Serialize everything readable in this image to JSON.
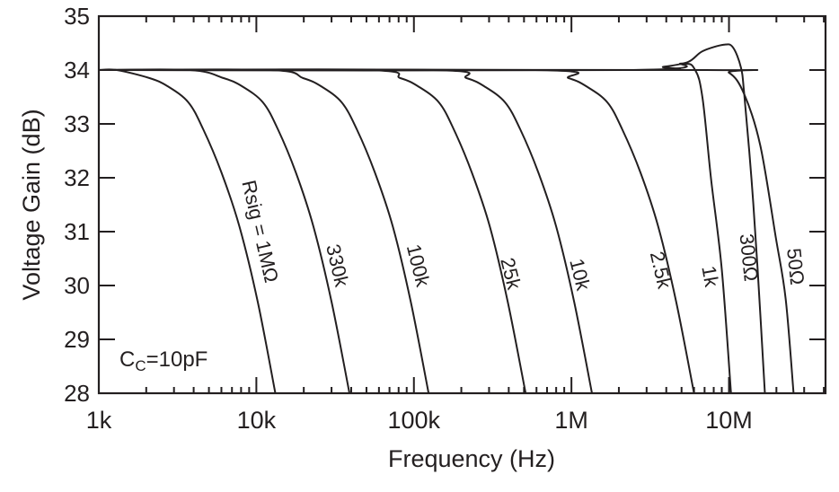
{
  "chart_data": {
    "type": "line",
    "title": "",
    "xlabel": "Frequency (Hz)",
    "ylabel": "Voltage Gain (dB)",
    "xscale": "log",
    "xlim": [
      1000,
      41000000
    ],
    "ylim": [
      28,
      35
    ],
    "x_ticks": [
      {
        "value": 1000,
        "label": "1k"
      },
      {
        "value": 10000,
        "label": "10k"
      },
      {
        "value": 100000,
        "label": "100k"
      },
      {
        "value": 1000000,
        "label": "1M"
      },
      {
        "value": 10000000,
        "label": "10M"
      }
    ],
    "y_ticks": [
      {
        "value": 35,
        "label": "35"
      },
      {
        "value": 34,
        "label": "34"
      },
      {
        "value": 33,
        "label": "33"
      },
      {
        "value": 32,
        "label": "32"
      },
      {
        "value": 31,
        "label": "31"
      },
      {
        "value": 30,
        "label": "30"
      },
      {
        "value": 29,
        "label": "29"
      },
      {
        "value": 28,
        "label": "28"
      }
    ],
    "grid": false,
    "annotation": {
      "main": "C",
      "sub": "C",
      "rest": "=10pF"
    },
    "line_color": "#231f20",
    "series": [
      {
        "name": "Rsig = 1MΩ",
        "points": [
          [
            1000,
            34
          ],
          [
            1300,
            34
          ],
          [
            2100,
            33.85
          ],
          [
            2730,
            33.7
          ],
          [
            3700,
            33.4
          ],
          [
            4600,
            32.9
          ],
          [
            6000,
            32.1
          ],
          [
            7800,
            31.1
          ],
          [
            10200,
            29.7
          ],
          [
            13200,
            28
          ]
        ]
      },
      {
        "name": "330k",
        "points": [
          [
            1000,
            34
          ],
          [
            3800,
            34
          ],
          [
            6200,
            33.85
          ],
          [
            8100,
            33.7
          ],
          [
            11000,
            33.4
          ],
          [
            13700,
            32.9
          ],
          [
            17800,
            32.1
          ],
          [
            23000,
            31.1
          ],
          [
            30000,
            29.7
          ],
          [
            39000,
            28
          ]
        ]
      },
      {
        "name": "100k",
        "points": [
          [
            1000,
            34
          ],
          [
            12200,
            34
          ],
          [
            19800,
            33.85
          ],
          [
            25700,
            33.7
          ],
          [
            34800,
            33.4
          ],
          [
            43400,
            32.9
          ],
          [
            56500,
            32.1
          ],
          [
            73400,
            31.1
          ],
          [
            95500,
            29.7
          ],
          [
            124000,
            28
          ]
        ]
      },
      {
        "name": "25k",
        "points": [
          [
            1000,
            34
          ],
          [
            50000,
            34
          ],
          [
            82000,
            33.85
          ],
          [
            106000,
            33.7
          ],
          [
            144000,
            33.4
          ],
          [
            179000,
            32.9
          ],
          [
            233000,
            32.1
          ],
          [
            303000,
            31.1
          ],
          [
            394000,
            29.7
          ],
          [
            512000,
            28
          ]
        ]
      },
      {
        "name": "10k",
        "points": [
          [
            1000,
            34
          ],
          [
            132000,
            34
          ],
          [
            216000,
            33.85
          ],
          [
            279000,
            33.7
          ],
          [
            379000,
            33.4
          ],
          [
            473000,
            32.9
          ],
          [
            616000,
            32.1
          ],
          [
            799000,
            31.1
          ],
          [
            1040000,
            29.7
          ],
          [
            1350000,
            28
          ]
        ]
      },
      {
        "name": "2.5k",
        "points": [
          [
            1000,
            34
          ],
          [
            588000,
            34
          ],
          [
            960000,
            33.85
          ],
          [
            1240000,
            33.7
          ],
          [
            1690000,
            33.4
          ],
          [
            2100000,
            32.9
          ],
          [
            2740000,
            32.1
          ],
          [
            3550000,
            31.1
          ],
          [
            4620000,
            29.7
          ],
          [
            6000000,
            28
          ]
        ]
      },
      {
        "name": "1k",
        "points": [
          [
            1000,
            34
          ],
          [
            2280000,
            34
          ],
          [
            5000000,
            34.12
          ],
          [
            6100000,
            34.0
          ],
          [
            6800000,
            33.47
          ],
          [
            7700000,
            31.97
          ],
          [
            9000000,
            30.3
          ],
          [
            10300000,
            28
          ]
        ]
      },
      {
        "name": "300Ω",
        "points": [
          [
            1000,
            34
          ],
          [
            2370000,
            34
          ],
          [
            3850000,
            34.06
          ],
          [
            5500000,
            34.15
          ],
          [
            6800000,
            34.35
          ],
          [
            9300000,
            34.47
          ],
          [
            10600000,
            34.42
          ],
          [
            11900000,
            34.05
          ],
          [
            12500000,
            33.55
          ],
          [
            13900000,
            31.97
          ],
          [
            15200000,
            30.3
          ],
          [
            16900000,
            28
          ]
        ]
      },
      {
        "name": "50Ω",
        "points": [
          [
            1000,
            34
          ],
          [
            7100000,
            34
          ],
          [
            10000000,
            33.95
          ],
          [
            12500000,
            33.55
          ],
          [
            15800000,
            32.6
          ],
          [
            19800000,
            30.9
          ],
          [
            22900000,
            29.75
          ],
          [
            25700000,
            28
          ]
        ]
      }
    ]
  }
}
